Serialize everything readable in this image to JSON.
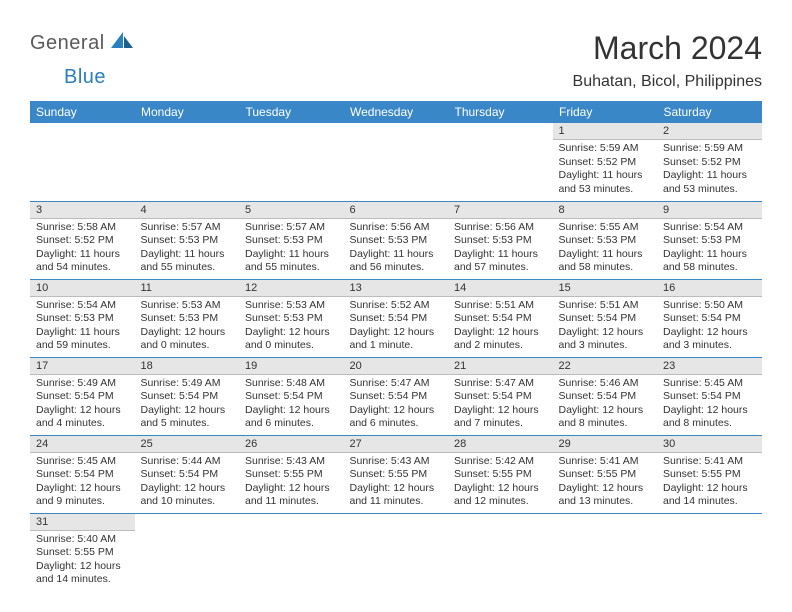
{
  "logo": {
    "part1": "General",
    "part2": "Blue"
  },
  "title": "March 2024",
  "location": "Buhatan, Bicol, Philippines",
  "colors": {
    "header_bg": "#3a87c7",
    "header_text": "#ffffff",
    "daynum_bg": "#e6e6e6",
    "row_divider": "#3a87c7",
    "body_text": "#333333",
    "logo_gray": "#5a5a5a",
    "logo_blue": "#2a7fbf"
  },
  "fonts": {
    "title_size_pt": 24,
    "location_size_pt": 12,
    "weekday_size_pt": 9,
    "cell_size_pt": 8
  },
  "weekdays": [
    "Sunday",
    "Monday",
    "Tuesday",
    "Wednesday",
    "Thursday",
    "Friday",
    "Saturday"
  ],
  "grid": [
    [
      {
        "day": null
      },
      {
        "day": null
      },
      {
        "day": null
      },
      {
        "day": null
      },
      {
        "day": null
      },
      {
        "day": "1",
        "sunrise": "Sunrise: 5:59 AM",
        "sunset": "Sunset: 5:52 PM",
        "daylight": "Daylight: 11 hours and 53 minutes."
      },
      {
        "day": "2",
        "sunrise": "Sunrise: 5:59 AM",
        "sunset": "Sunset: 5:52 PM",
        "daylight": "Daylight: 11 hours and 53 minutes."
      }
    ],
    [
      {
        "day": "3",
        "sunrise": "Sunrise: 5:58 AM",
        "sunset": "Sunset: 5:52 PM",
        "daylight": "Daylight: 11 hours and 54 minutes."
      },
      {
        "day": "4",
        "sunrise": "Sunrise: 5:57 AM",
        "sunset": "Sunset: 5:53 PM",
        "daylight": "Daylight: 11 hours and 55 minutes."
      },
      {
        "day": "5",
        "sunrise": "Sunrise: 5:57 AM",
        "sunset": "Sunset: 5:53 PM",
        "daylight": "Daylight: 11 hours and 55 minutes."
      },
      {
        "day": "6",
        "sunrise": "Sunrise: 5:56 AM",
        "sunset": "Sunset: 5:53 PM",
        "daylight": "Daylight: 11 hours and 56 minutes."
      },
      {
        "day": "7",
        "sunrise": "Sunrise: 5:56 AM",
        "sunset": "Sunset: 5:53 PM",
        "daylight": "Daylight: 11 hours and 57 minutes."
      },
      {
        "day": "8",
        "sunrise": "Sunrise: 5:55 AM",
        "sunset": "Sunset: 5:53 PM",
        "daylight": "Daylight: 11 hours and 58 minutes."
      },
      {
        "day": "9",
        "sunrise": "Sunrise: 5:54 AM",
        "sunset": "Sunset: 5:53 PM",
        "daylight": "Daylight: 11 hours and 58 minutes."
      }
    ],
    [
      {
        "day": "10",
        "sunrise": "Sunrise: 5:54 AM",
        "sunset": "Sunset: 5:53 PM",
        "daylight": "Daylight: 11 hours and 59 minutes."
      },
      {
        "day": "11",
        "sunrise": "Sunrise: 5:53 AM",
        "sunset": "Sunset: 5:53 PM",
        "daylight": "Daylight: 12 hours and 0 minutes."
      },
      {
        "day": "12",
        "sunrise": "Sunrise: 5:53 AM",
        "sunset": "Sunset: 5:53 PM",
        "daylight": "Daylight: 12 hours and 0 minutes."
      },
      {
        "day": "13",
        "sunrise": "Sunrise: 5:52 AM",
        "sunset": "Sunset: 5:54 PM",
        "daylight": "Daylight: 12 hours and 1 minute."
      },
      {
        "day": "14",
        "sunrise": "Sunrise: 5:51 AM",
        "sunset": "Sunset: 5:54 PM",
        "daylight": "Daylight: 12 hours and 2 minutes."
      },
      {
        "day": "15",
        "sunrise": "Sunrise: 5:51 AM",
        "sunset": "Sunset: 5:54 PM",
        "daylight": "Daylight: 12 hours and 3 minutes."
      },
      {
        "day": "16",
        "sunrise": "Sunrise: 5:50 AM",
        "sunset": "Sunset: 5:54 PM",
        "daylight": "Daylight: 12 hours and 3 minutes."
      }
    ],
    [
      {
        "day": "17",
        "sunrise": "Sunrise: 5:49 AM",
        "sunset": "Sunset: 5:54 PM",
        "daylight": "Daylight: 12 hours and 4 minutes."
      },
      {
        "day": "18",
        "sunrise": "Sunrise: 5:49 AM",
        "sunset": "Sunset: 5:54 PM",
        "daylight": "Daylight: 12 hours and 5 minutes."
      },
      {
        "day": "19",
        "sunrise": "Sunrise: 5:48 AM",
        "sunset": "Sunset: 5:54 PM",
        "daylight": "Daylight: 12 hours and 6 minutes."
      },
      {
        "day": "20",
        "sunrise": "Sunrise: 5:47 AM",
        "sunset": "Sunset: 5:54 PM",
        "daylight": "Daylight: 12 hours and 6 minutes."
      },
      {
        "day": "21",
        "sunrise": "Sunrise: 5:47 AM",
        "sunset": "Sunset: 5:54 PM",
        "daylight": "Daylight: 12 hours and 7 minutes."
      },
      {
        "day": "22",
        "sunrise": "Sunrise: 5:46 AM",
        "sunset": "Sunset: 5:54 PM",
        "daylight": "Daylight: 12 hours and 8 minutes."
      },
      {
        "day": "23",
        "sunrise": "Sunrise: 5:45 AM",
        "sunset": "Sunset: 5:54 PM",
        "daylight": "Daylight: 12 hours and 8 minutes."
      }
    ],
    [
      {
        "day": "24",
        "sunrise": "Sunrise: 5:45 AM",
        "sunset": "Sunset: 5:54 PM",
        "daylight": "Daylight: 12 hours and 9 minutes."
      },
      {
        "day": "25",
        "sunrise": "Sunrise: 5:44 AM",
        "sunset": "Sunset: 5:54 PM",
        "daylight": "Daylight: 12 hours and 10 minutes."
      },
      {
        "day": "26",
        "sunrise": "Sunrise: 5:43 AM",
        "sunset": "Sunset: 5:55 PM",
        "daylight": "Daylight: 12 hours and 11 minutes."
      },
      {
        "day": "27",
        "sunrise": "Sunrise: 5:43 AM",
        "sunset": "Sunset: 5:55 PM",
        "daylight": "Daylight: 12 hours and 11 minutes."
      },
      {
        "day": "28",
        "sunrise": "Sunrise: 5:42 AM",
        "sunset": "Sunset: 5:55 PM",
        "daylight": "Daylight: 12 hours and 12 minutes."
      },
      {
        "day": "29",
        "sunrise": "Sunrise: 5:41 AM",
        "sunset": "Sunset: 5:55 PM",
        "daylight": "Daylight: 12 hours and 13 minutes."
      },
      {
        "day": "30",
        "sunrise": "Sunrise: 5:41 AM",
        "sunset": "Sunset: 5:55 PM",
        "daylight": "Daylight: 12 hours and 14 minutes."
      }
    ],
    [
      {
        "day": "31",
        "sunrise": "Sunrise: 5:40 AM",
        "sunset": "Sunset: 5:55 PM",
        "daylight": "Daylight: 12 hours and 14 minutes."
      },
      {
        "day": null
      },
      {
        "day": null
      },
      {
        "day": null
      },
      {
        "day": null
      },
      {
        "day": null
      },
      {
        "day": null
      }
    ]
  ]
}
